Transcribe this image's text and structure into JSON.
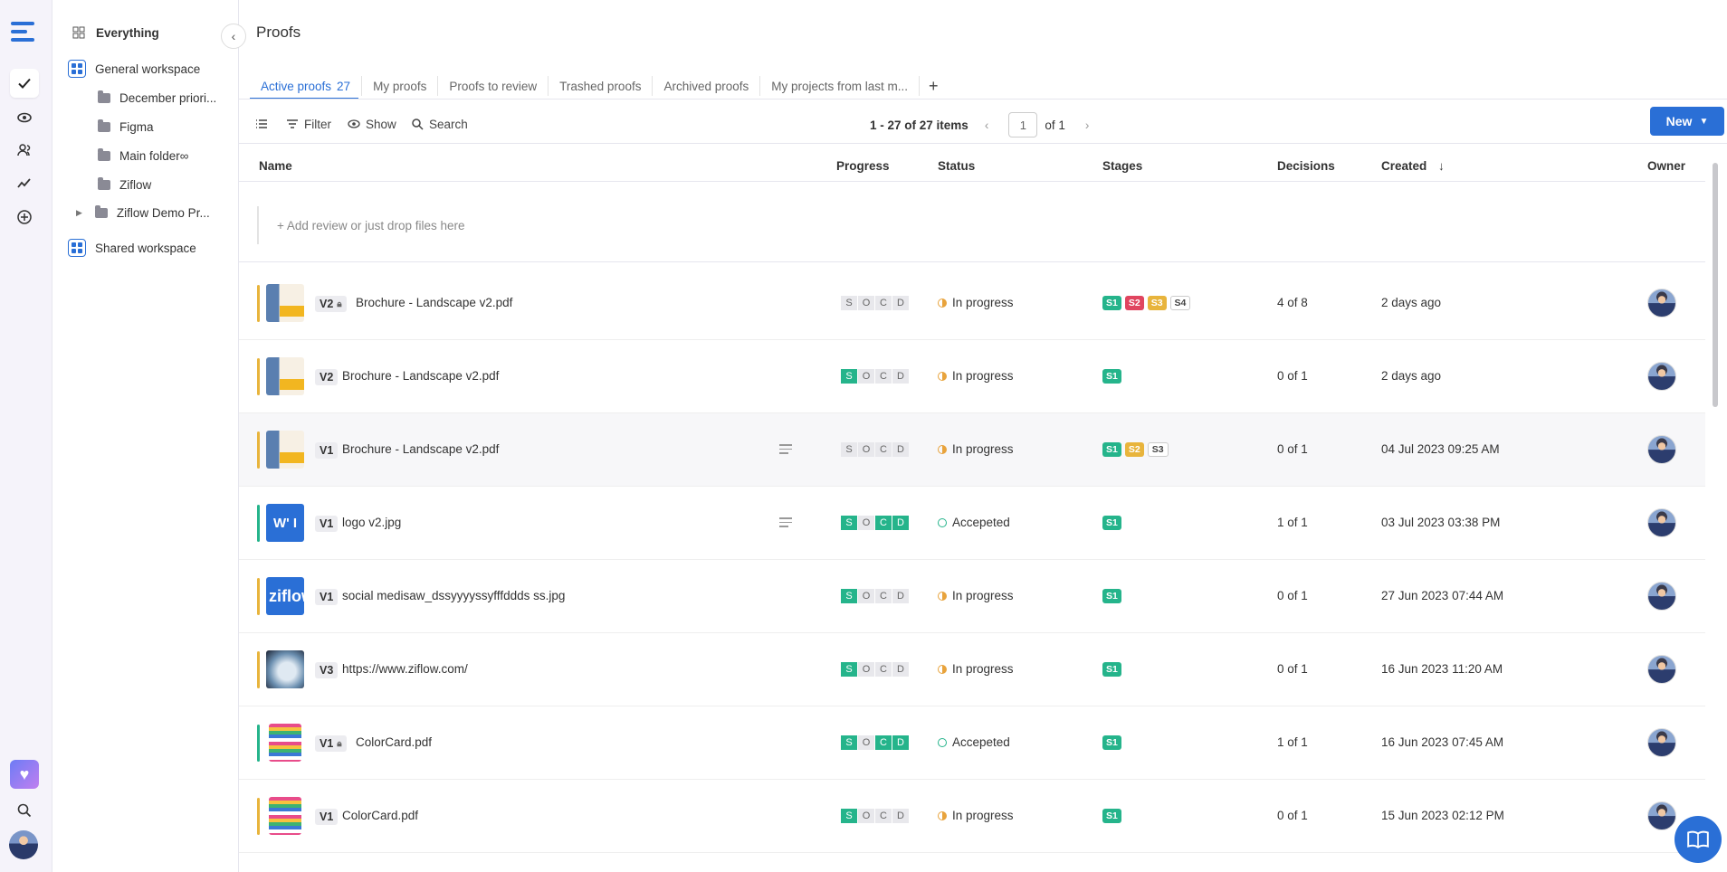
{
  "sidebar": {
    "everything": "Everything",
    "general_workspace": "General workspace",
    "folders": [
      "December priori...",
      "Figma",
      "Main folder∞",
      "Ziflow",
      "Ziflow Demo Pr..."
    ],
    "shared_workspace": "Shared workspace"
  },
  "page": {
    "title": "Proofs"
  },
  "tabs": [
    {
      "label": "Active proofs",
      "count": "27"
    },
    {
      "label": "My proofs"
    },
    {
      "label": "Proofs to review"
    },
    {
      "label": "Trashed proofs"
    },
    {
      "label": "Archived proofs"
    },
    {
      "label": "My projects from last m..."
    }
  ],
  "tab_add": "+",
  "toolbar": {
    "filter": "Filter",
    "show": "Show",
    "search": "Search",
    "items_range": "1 - 27 of 27 items",
    "page_value": "1",
    "page_of": "of 1",
    "new_label": "New"
  },
  "columns": {
    "name": "Name",
    "progress": "Progress",
    "status": "Status",
    "stages": "Stages",
    "decisions": "Decisions",
    "created": "Created",
    "owner": "Owner"
  },
  "add_review": "+ Add review or just drop files here",
  "progress_letters": [
    "S",
    "O",
    "C",
    "D"
  ],
  "rows": [
    {
      "version": "V2",
      "locked": true,
      "name": "Brochure - Landscape v2.pdf",
      "thumb": "brochure",
      "status": "In progress",
      "stages": [
        "S1",
        "S2",
        "S3",
        "S4"
      ],
      "decisions": "4 of 8",
      "created": "2 days ago"
    },
    {
      "version": "V2",
      "locked": false,
      "name": "Brochure - Landscape v2.pdf",
      "thumb": "brochure",
      "status": "In progress",
      "stages": [
        "S1"
      ],
      "decisions": "0 of 1",
      "created": "2 days ago"
    },
    {
      "version": "V1",
      "locked": false,
      "name": "Brochure - Landscape v2.pdf",
      "thumb": "brochure",
      "status": "In progress",
      "stages": [
        "S1",
        "S2",
        "S3"
      ],
      "decisions": "0 of 1",
      "created": "04 Jul 2023 09:25 AM"
    },
    {
      "version": "V1",
      "locked": false,
      "name": "logo v2.jpg",
      "thumb": "logo",
      "thumb_text": "W' I",
      "status": "Accepeted",
      "stages": [
        "S1"
      ],
      "decisions": "1 of 1",
      "created": "03 Jul 2023 03:38 PM"
    },
    {
      "version": "V1",
      "locked": false,
      "name": "social medisaw_dssyyyyssyfffddds ss.jpg",
      "thumb": "ziflow",
      "thumb_text": "ziflow",
      "status": "In progress",
      "stages": [
        "S1"
      ],
      "decisions": "0 of 1",
      "created": "27 Jun 2023 07:44 AM"
    },
    {
      "version": "V3",
      "locked": false,
      "name": "https://www.ziflow.com/",
      "thumb": "web",
      "status": "In progress",
      "stages": [
        "S1"
      ],
      "decisions": "0 of 1",
      "created": "16 Jun 2023 11:20 AM"
    },
    {
      "version": "V1",
      "locked": true,
      "name": "ColorCard.pdf",
      "thumb": "color",
      "status": "Accepeted",
      "stages": [
        "S1"
      ],
      "decisions": "1 of 1",
      "created": "16 Jun 2023 07:45 AM"
    },
    {
      "version": "V1",
      "locked": false,
      "name": "ColorCard.pdf",
      "thumb": "color",
      "status": "In progress",
      "stages": [
        "S1"
      ],
      "decisions": "0 of 1",
      "created": "15 Jun 2023 02:12 PM"
    }
  ],
  "colors": {
    "accent": "#2a6fd6",
    "green": "#25b48b",
    "red": "#e0455f",
    "yellow": "#e8b43c",
    "bar_yellow": "#e8b43c",
    "bar_green": "#25b48b"
  }
}
